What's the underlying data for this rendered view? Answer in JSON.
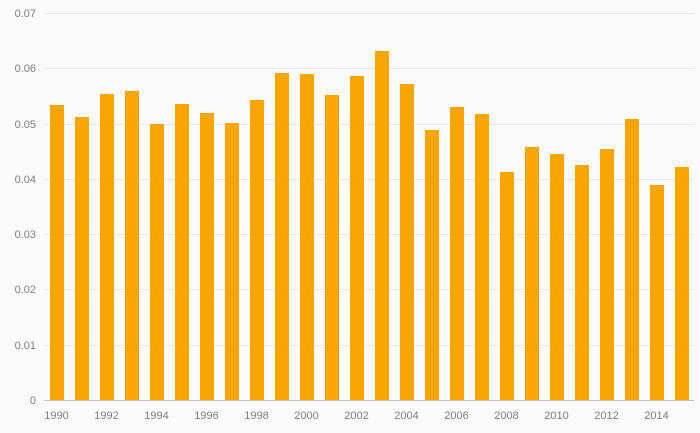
{
  "chart_data": {
    "type": "bar",
    "title": "",
    "xlabel": "",
    "ylabel": "",
    "categories": [
      "1990",
      "1991",
      "1992",
      "1993",
      "1994",
      "1995",
      "1996",
      "1997",
      "1998",
      "1999",
      "2000",
      "2001",
      "2002",
      "2003",
      "2004",
      "2005",
      "2006",
      "2007",
      "2008",
      "2009",
      "2010",
      "2011",
      "2012",
      "2013",
      "2014",
      "2015"
    ],
    "values": [
      0.0535,
      0.0514,
      0.0556,
      0.0561,
      0.0501,
      0.0537,
      0.0521,
      0.0503,
      0.0545,
      0.0593,
      0.0592,
      0.0554,
      0.0587,
      0.0633,
      0.0574,
      0.0491,
      0.0532,
      0.052,
      0.0415,
      0.046,
      0.0447,
      0.0427,
      0.0455,
      0.0511,
      0.039,
      0.0424
    ],
    "ylim": [
      0,
      0.07
    ],
    "yticks": [
      0,
      0.01,
      0.02,
      0.03,
      0.04,
      0.05,
      0.06,
      0.07
    ],
    "ytick_labels": [
      "0",
      "0.01",
      "0.02",
      "0.03",
      "0.04",
      "0.05",
      "0.06",
      "0.07"
    ],
    "xtick_labels": [
      "1990",
      "1992",
      "1994",
      "1996",
      "1998",
      "2000",
      "2002",
      "2004",
      "2006",
      "2008",
      "2010",
      "2012",
      "2014"
    ],
    "bar_color": "#F9A602",
    "background": "#fafafa",
    "grid": true,
    "legend": "none"
  }
}
